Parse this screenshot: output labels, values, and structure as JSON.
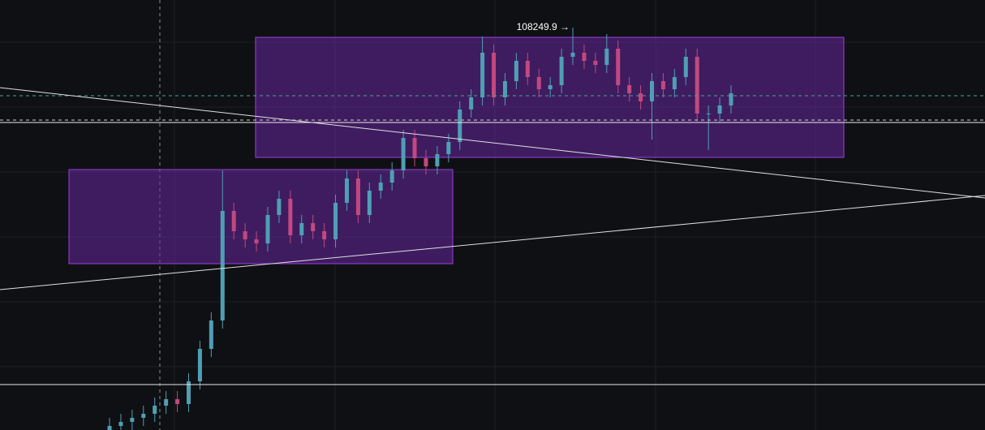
{
  "chart_data": {
    "type": "candlestick",
    "annotation": "108249.9 →",
    "categories": [
      null,
      null,
      null,
      null,
      null,
      null,
      null,
      null,
      null,
      null,
      null,
      null,
      null,
      null,
      null,
      null,
      null,
      null,
      null,
      null,
      null,
      null,
      null,
      null,
      null,
      null,
      null,
      null,
      null,
      null,
      null,
      null,
      null,
      null,
      null,
      null,
      null,
      null,
      null,
      null,
      null,
      null,
      null,
      null,
      null,
      null,
      null,
      null,
      null,
      null,
      null,
      null,
      null,
      null,
      null,
      null
    ],
    "open": [
      96300,
      96466,
      96586,
      96706,
      96826,
      97066,
      97258,
      97114,
      97786,
      98746,
      99586,
      102826,
      102226,
      101986,
      101866,
      102706,
      103186,
      102106,
      102466,
      102226,
      101986,
      103066,
      103786,
      102706,
      103426,
      103666,
      104026,
      104986,
      104386,
      104146,
      104506,
      104866,
      105826,
      106186,
      107506,
      106186,
      106666,
      107266,
      106786,
      106426,
      106546,
      107386,
      107506,
      107266,
      107146,
      107626,
      106546,
      106306,
      106066,
      106666,
      106426,
      106786,
      107386,
      105706,
      105706,
      105946
    ],
    "high": [
      96706,
      96826,
      96946,
      97066,
      97306,
      97498,
      97498,
      98026,
      98986,
      99826,
      104026,
      103066,
      102466,
      102226,
      102946,
      103426,
      103426,
      102706,
      102706,
      102466,
      103306,
      104026,
      104026,
      103666,
      103906,
      104266,
      105226,
      105226,
      104626,
      104746,
      105106,
      106066,
      106426,
      107986,
      107746,
      106906,
      107506,
      107506,
      107026,
      106786,
      107626,
      108249.9,
      107746,
      107506,
      108058,
      107866,
      106786,
      106546,
      106906,
      106906,
      107026,
      107626,
      107626,
      105946,
      106186,
      106546
    ],
    "low": [
      96060,
      96226,
      96346,
      96466,
      96586,
      96826,
      96874,
      96874,
      97546,
      98506,
      99346,
      101986,
      101746,
      101626,
      101626,
      102466,
      101866,
      101866,
      101986,
      101746,
      101746,
      102826,
      102466,
      102466,
      103186,
      103426,
      103786,
      104146,
      103906,
      103906,
      104266,
      104626,
      105586,
      105946,
      105946,
      105946,
      106426,
      106546,
      106186,
      106186,
      106306,
      107146,
      107026,
      106906,
      106906,
      106306,
      106066,
      105826,
      104938,
      106186,
      106186,
      106546,
      105466,
      104626,
      105466,
      105706
    ],
    "close": [
      96466,
      96586,
      96706,
      96826,
      97066,
      97258,
      97114,
      97786,
      98746,
      99586,
      102826,
      102226,
      101986,
      101866,
      102706,
      103186,
      102106,
      102466,
      102226,
      101986,
      103066,
      103786,
      102706,
      103426,
      103666,
      104026,
      104986,
      104386,
      104146,
      104506,
      104866,
      105826,
      106186,
      107506,
      106186,
      106666,
      107266,
      106786,
      106426,
      106546,
      107386,
      107506,
      107266,
      107146,
      107626,
      106546,
      106306,
      106066,
      106666,
      106426,
      106786,
      107386,
      105706,
      105706,
      105946,
      106306
    ],
    "up_color": "#4f9fb4",
    "down_color": "#c2487f",
    "ylim": [
      96346,
      109066
    ]
  }
}
